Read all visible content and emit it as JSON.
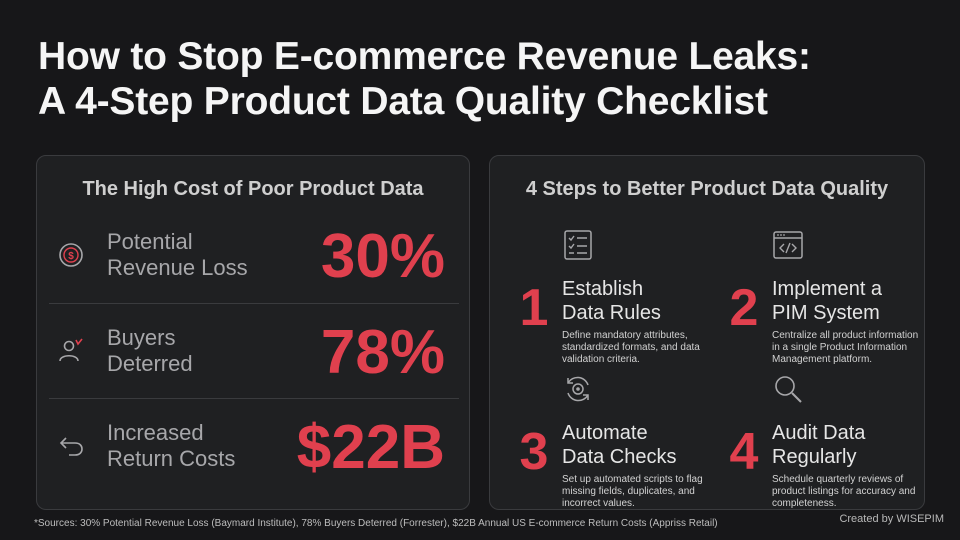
{
  "title": {
    "line1": "How to Stop E-commerce Revenue Leaks:",
    "line2": "A 4-Step Product Data Quality Checklist"
  },
  "cost_panel": {
    "heading": "The High Cost of Poor Product Data",
    "stats": [
      {
        "label_line1": "Potential",
        "label_line2": "Revenue Loss",
        "value": "30%",
        "icon": "dollar-coin-icon"
      },
      {
        "label_line1": "Buyers",
        "label_line2": "Deterred",
        "value": "78%",
        "icon": "user-deterred-icon"
      },
      {
        "label_line1": "Increased",
        "label_line2": "Return Costs",
        "value": "$22B",
        "icon": "return-arrow-icon"
      }
    ]
  },
  "steps_panel": {
    "heading": "4 Steps to Better Product Data Quality",
    "steps": [
      {
        "number": "1",
        "title_line1": "Establish",
        "title_line2": "Data Rules",
        "description": "Define mandatory attributes, standardized formats, and data validation criteria.",
        "icon": "checklist-icon"
      },
      {
        "number": "2",
        "title_line1": "Implement a",
        "title_line2": "PIM System",
        "description": "Centralize all product information in a single Product Information Management platform.",
        "icon": "code-window-icon"
      },
      {
        "number": "3",
        "title_line1": "Automate",
        "title_line2": "Data Checks",
        "description": "Set up automated scripts to flag missing fields, duplicates, and incorrect values.",
        "icon": "refresh-gear-icon"
      },
      {
        "number": "4",
        "title_line1": "Audit Data",
        "title_line2": "Regularly",
        "description": "Schedule quarterly reviews of product listings for accuracy and completeness.",
        "icon": "magnifier-icon"
      }
    ]
  },
  "footer": {
    "sources": "*Sources: 30% Potential Revenue Loss (Baymard Institute), 78% Buyers Deterred (Forrester), $22B Annual US E-commerce Return Costs (Appriss Retail)",
    "credit": "Created by WISEPIM"
  },
  "colors": {
    "background": "#171719",
    "panel": "#1f2022",
    "accent_red": "#e0404e"
  }
}
